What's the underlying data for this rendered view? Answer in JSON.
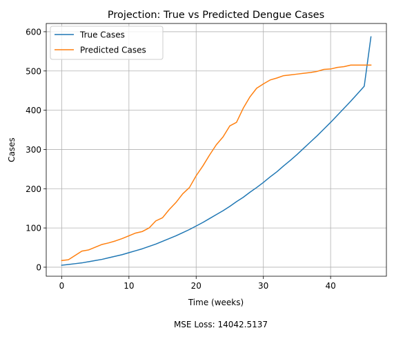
{
  "chart_data": {
    "type": "line",
    "title": "Projection: True vs Predicted Dengue Cases",
    "xlabel": "Time (weeks)",
    "ylabel": "Cases",
    "xlim": [
      -2.3,
      48.3
    ],
    "ylim": [
      -23,
      621
    ],
    "xticks": [
      0,
      10,
      20,
      30,
      40
    ],
    "yticks": [
      0,
      100,
      200,
      300,
      400,
      500,
      600
    ],
    "grid": true,
    "legend_position": "upper-left",
    "series": [
      {
        "name": "True Cases",
        "color": "#1f77b4",
        "x": [
          0,
          1,
          2,
          3,
          4,
          5,
          6,
          7,
          8,
          9,
          10,
          11,
          12,
          13,
          14,
          15,
          16,
          17,
          18,
          19,
          20,
          21,
          22,
          23,
          24,
          25,
          26,
          27,
          28,
          29,
          30,
          31,
          32,
          33,
          34,
          35,
          36,
          37,
          38,
          39,
          40,
          41,
          42,
          43,
          44,
          45,
          46
        ],
        "y": [
          5,
          7,
          9,
          11,
          14,
          17,
          20,
          24,
          28,
          32,
          37,
          42,
          47,
          53,
          59,
          66,
          73,
          80,
          88,
          96,
          105,
          114,
          124,
          134,
          144,
          155,
          167,
          178,
          191,
          203,
          216,
          230,
          243,
          258,
          272,
          287,
          303,
          319,
          335,
          352,
          369,
          387,
          405,
          423,
          442,
          461,
          587
        ]
      },
      {
        "name": "Predicted Cases",
        "color": "#ff7f0e",
        "x": [
          0,
          1,
          2,
          3,
          4,
          5,
          6,
          7,
          8,
          9,
          10,
          11,
          12,
          13,
          14,
          15,
          16,
          17,
          18,
          19,
          20,
          21,
          22,
          23,
          24,
          25,
          26,
          27,
          28,
          29,
          30,
          31,
          32,
          33,
          34,
          35,
          36,
          37,
          38,
          39,
          40,
          41,
          42,
          43,
          44,
          45,
          46
        ],
        "y": [
          17,
          19,
          30,
          41,
          44,
          51,
          58,
          62,
          67,
          73,
          80,
          87,
          91,
          100,
          118,
          126,
          147,
          165,
          187,
          203,
          233,
          258,
          286,
          312,
          332,
          360,
          369,
          405,
          434,
          456,
          467,
          477,
          482,
          488,
          490,
          492,
          494,
          496,
          499,
          504,
          505,
          509,
          511,
          515,
          515,
          515,
          515
        ]
      }
    ]
  },
  "footnote": "MSE Loss: 14042.5137"
}
